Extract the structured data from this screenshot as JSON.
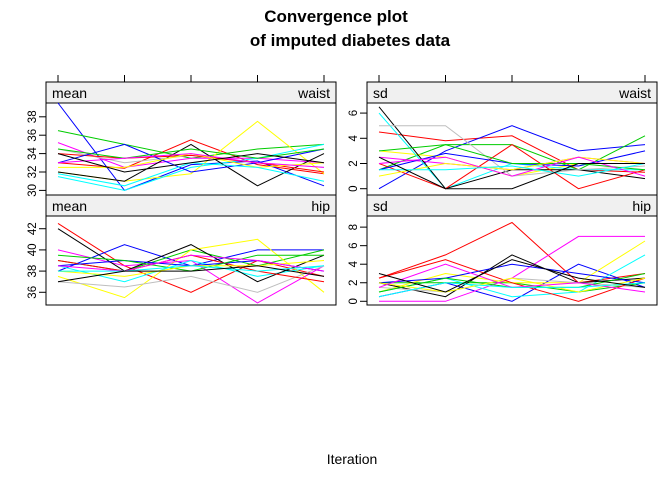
{
  "chart_data": {
    "type": "line",
    "title_line1": "Convergence plot",
    "title_line2": "of imputed diabetes data",
    "xlabel": "Iteration",
    "x": [
      1,
      2,
      3,
      4,
      5
    ],
    "series_colors": [
      "#ff0000",
      "#0000ff",
      "#00cc00",
      "#ffff00",
      "#ff00ff",
      "#00ffff",
      "#000000",
      "#bebebe",
      "#ff0000",
      "#0000ff",
      "#00cc00",
      "#ffff00",
      "#ff00ff",
      "#00ffff",
      "#000000"
    ],
    "panels": [
      {
        "stat": "mean",
        "variable": "waist",
        "ylim": [
          29.5,
          39.5
        ],
        "yticks": [
          30,
          32,
          34,
          36,
          38
        ],
        "series": [
          {
            "values": [
              33.0,
              32.4,
              35.5,
              32.8,
              31.8
            ]
          },
          {
            "values": [
              39.5,
              30.0,
              32.8,
              33.2,
              30.5
            ]
          },
          {
            "values": [
              36.5,
              35.0,
              33.5,
              34.5,
              35.0
            ]
          },
          {
            "values": [
              32.0,
              31.0,
              31.8,
              37.5,
              31.8
            ]
          },
          {
            "values": [
              35.2,
              32.5,
              33.5,
              33.5,
              33.0
            ]
          },
          {
            "values": [
              31.5,
              30.0,
              32.5,
              33.5,
              35.0
            ]
          },
          {
            "values": [
              32.0,
              31.0,
              35.0,
              30.5,
              34.0
            ]
          },
          {
            "values": [
              34.5,
              33.0,
              33.8,
              33.0,
              32.5
            ]
          },
          {
            "values": [
              34.0,
              33.5,
              33.8,
              33.0,
              32.0
            ]
          },
          {
            "values": [
              33.0,
              35.0,
              32.0,
              33.0,
              34.5
            ]
          },
          {
            "values": [
              34.5,
              33.5,
              34.5,
              33.5,
              34.5
            ]
          },
          {
            "values": [
              32.5,
              32.5,
              34.0,
              32.5,
              33.0
            ]
          },
          {
            "values": [
              33.0,
              33.5,
              34.0,
              33.0,
              32.5
            ]
          },
          {
            "values": [
              31.8,
              30.5,
              33.0,
              32.5,
              31.0
            ]
          },
          {
            "values": [
              34.0,
              32.0,
              33.0,
              34.0,
              33.0
            ]
          }
        ]
      },
      {
        "stat": "sd",
        "variable": "waist",
        "ylim": [
          -0.5,
          6.8
        ],
        "yticks": [
          0,
          2,
          4,
          6
        ],
        "series": [
          {
            "values": [
              4.5,
              3.8,
              4.2,
              1.5,
              1.3
            ]
          },
          {
            "values": [
              0.0,
              3.0,
              5.0,
              3.0,
              3.5
            ]
          },
          {
            "values": [
              1.5,
              3.5,
              3.5,
              1.5,
              4.2
            ]
          },
          {
            "values": [
              3.0,
              2.5,
              1.0,
              2.0,
              2.0
            ]
          },
          {
            "values": [
              2.5,
              2.0,
              1.5,
              2.5,
              2.0
            ]
          },
          {
            "values": [
              6.0,
              0.0,
              2.0,
              1.5,
              1.5
            ]
          },
          {
            "values": [
              6.5,
              0.0,
              1.5,
              1.5,
              0.8
            ]
          },
          {
            "values": [
              5.0,
              5.0,
              1.0,
              1.5,
              1.8
            ]
          },
          {
            "values": [
              2.0,
              0.0,
              3.5,
              0.0,
              1.5
            ]
          },
          {
            "values": [
              1.5,
              2.8,
              2.0,
              1.8,
              3.0
            ]
          },
          {
            "values": [
              3.0,
              3.5,
              2.0,
              2.0,
              1.5
            ]
          },
          {
            "values": [
              1.0,
              2.0,
              1.5,
              2.5,
              2.0
            ]
          },
          {
            "values": [
              2.0,
              2.5,
              1.0,
              2.5,
              1.0
            ]
          },
          {
            "values": [
              1.5,
              1.5,
              1.8,
              1.0,
              2.0
            ]
          },
          {
            "values": [
              2.5,
              0.0,
              0.0,
              2.0,
              2.0
            ]
          }
        ]
      },
      {
        "stat": "mean",
        "variable": "hip",
        "ylim": [
          34.8,
          43.2
        ],
        "yticks": [
          36,
          38,
          40,
          42
        ],
        "series": [
          {
            "values": [
              42.5,
              38.5,
              36.0,
              39.0,
              37.5
            ]
          },
          {
            "values": [
              38.0,
              40.5,
              38.5,
              40.0,
              40.0
            ]
          },
          {
            "values": [
              39.0,
              38.0,
              40.0,
              38.5,
              40.0
            ]
          },
          {
            "values": [
              37.5,
              35.5,
              40.0,
              41.0,
              36.0
            ]
          },
          {
            "values": [
              40.0,
              38.5,
              39.0,
              35.0,
              38.5
            ]
          },
          {
            "values": [
              38.5,
              37.0,
              39.0,
              37.5,
              38.5
            ]
          },
          {
            "values": [
              42.0,
              38.0,
              40.5,
              37.0,
              39.5
            ]
          },
          {
            "values": [
              37.0,
              36.5,
              37.5,
              36.0,
              38.5
            ]
          },
          {
            "values": [
              39.0,
              38.0,
              39.5,
              38.0,
              37.0
            ]
          },
          {
            "values": [
              38.5,
              39.0,
              38.5,
              39.0,
              38.0
            ]
          },
          {
            "values": [
              39.5,
              39.0,
              38.0,
              39.5,
              39.5
            ]
          },
          {
            "values": [
              38.0,
              37.5,
              38.5,
              38.5,
              39.0
            ]
          },
          {
            "values": [
              38.5,
              38.0,
              39.5,
              39.0,
              38.0
            ]
          },
          {
            "values": [
              38.0,
              38.0,
              38.5,
              38.0,
              38.5
            ]
          },
          {
            "values": [
              37.0,
              38.0,
              38.0,
              38.5,
              37.5
            ]
          }
        ]
      },
      {
        "stat": "sd",
        "variable": "hip",
        "ylim": [
          -0.4,
          9.2
        ],
        "yticks": [
          0,
          2,
          4,
          6,
          8
        ],
        "series": [
          {
            "values": [
              2.5,
              5.0,
              8.5,
              2.0,
              3.0
            ]
          },
          {
            "values": [
              0.5,
              2.0,
              0.0,
              4.0,
              1.5
            ]
          },
          {
            "values": [
              2.0,
              2.0,
              2.0,
              1.0,
              2.0
            ]
          },
          {
            "values": [
              1.0,
              3.0,
              2.0,
              2.0,
              6.5
            ]
          },
          {
            "values": [
              0.0,
              0.0,
              2.5,
              7.0,
              7.0
            ]
          },
          {
            "values": [
              1.0,
              2.5,
              0.5,
              1.0,
              5.0
            ]
          },
          {
            "values": [
              2.0,
              0.5,
              5.0,
              2.0,
              2.5
            ]
          },
          {
            "values": [
              1.5,
              1.0,
              2.5,
              2.0,
              1.5
            ]
          },
          {
            "values": [
              2.5,
              4.5,
              2.0,
              0.0,
              2.5
            ]
          },
          {
            "values": [
              2.0,
              2.5,
              4.0,
              3.0,
              2.0
            ]
          },
          {
            "values": [
              1.0,
              2.5,
              1.5,
              1.5,
              3.0
            ]
          },
          {
            "values": [
              2.0,
              1.0,
              2.5,
              1.0,
              2.5
            ]
          },
          {
            "values": [
              1.5,
              4.0,
              1.5,
              2.0,
              1.0
            ]
          },
          {
            "values": [
              0.5,
              2.0,
              1.5,
              1.5,
              2.0
            ]
          },
          {
            "values": [
              3.0,
              1.0,
              4.5,
              2.5,
              1.5
            ]
          }
        ]
      }
    ]
  }
}
